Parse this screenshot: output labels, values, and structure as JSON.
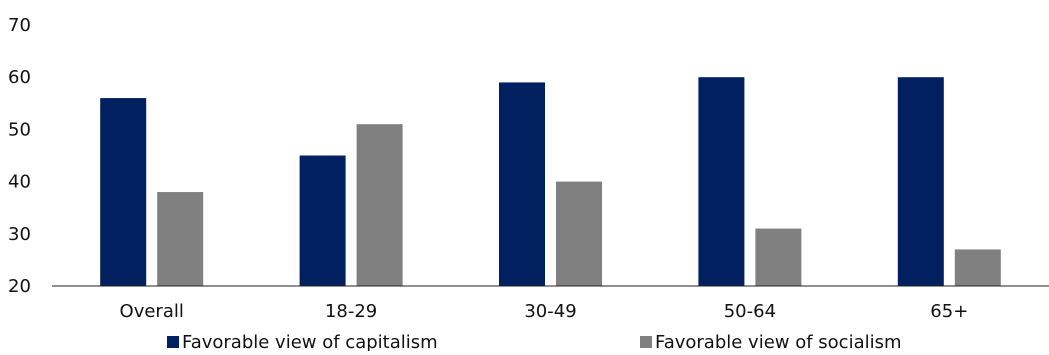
{
  "chart_data": {
    "type": "bar",
    "categories": [
      "Overall",
      "18-29",
      "30-49",
      "50-64",
      "65+"
    ],
    "series": [
      {
        "name": "Favorable view of capitalism",
        "values": [
          56,
          45,
          59,
          60,
          60
        ],
        "color": "#002060"
      },
      {
        "name": "Favorable view of socialism",
        "values": [
          38,
          51,
          40,
          31,
          27
        ],
        "color": "#808080"
      }
    ],
    "ylim": [
      20,
      70
    ],
    "yticks": [
      20,
      30,
      40,
      50,
      60,
      70
    ],
    "grid": false,
    "legend": "bottom"
  }
}
